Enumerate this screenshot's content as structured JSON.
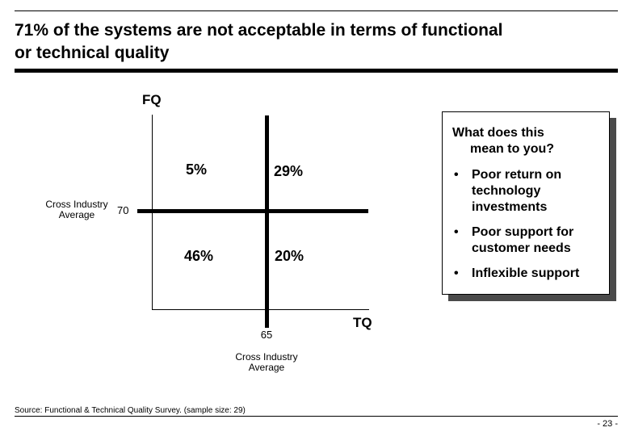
{
  "slide": {
    "title": "71% of the systems are not acceptable in terms of functional\nor technical quality",
    "source": "Source: Functional & Technical Quality Survey. (sample size: 29)",
    "page_number": "- 23 -"
  },
  "chart": {
    "y_axis_label": "FQ",
    "x_axis_label": "TQ",
    "quadrant_values": {
      "top_left": "5%",
      "top_right": "29%",
      "bottom_left": "46%",
      "bottom_right": "20%"
    },
    "y_reference": {
      "value": "70",
      "label": "Cross Industry\nAverage"
    },
    "x_reference": {
      "value": "65",
      "label": "Cross Industry\nAverage"
    }
  },
  "callout": {
    "header": "What does this\nmean to you?",
    "bullet_glyph": "•",
    "bullets": [
      "Poor return on\ntechnology\ninvestments",
      "Poor support for\ncustomer needs",
      "Inflexible support"
    ]
  },
  "chart_data": {
    "type": "heatmap",
    "title": "71% of the systems are not acceptable in terms of functional or technical quality",
    "xlabel": "TQ",
    "ylabel": "FQ",
    "x_reference_line": {
      "value": 65,
      "label": "Cross Industry Average"
    },
    "y_reference_line": {
      "value": 70,
      "label": "Cross Industry Average"
    },
    "cells": [
      {
        "quadrant": "FQ above 70, TQ below 65",
        "value_pct": 5
      },
      {
        "quadrant": "FQ above 70, TQ above 65",
        "value_pct": 29
      },
      {
        "quadrant": "FQ below 70, TQ below 65",
        "value_pct": 46
      },
      {
        "quadrant": "FQ below 70, TQ above 65",
        "value_pct": 20
      }
    ],
    "legend_position": "none",
    "grid": false
  }
}
